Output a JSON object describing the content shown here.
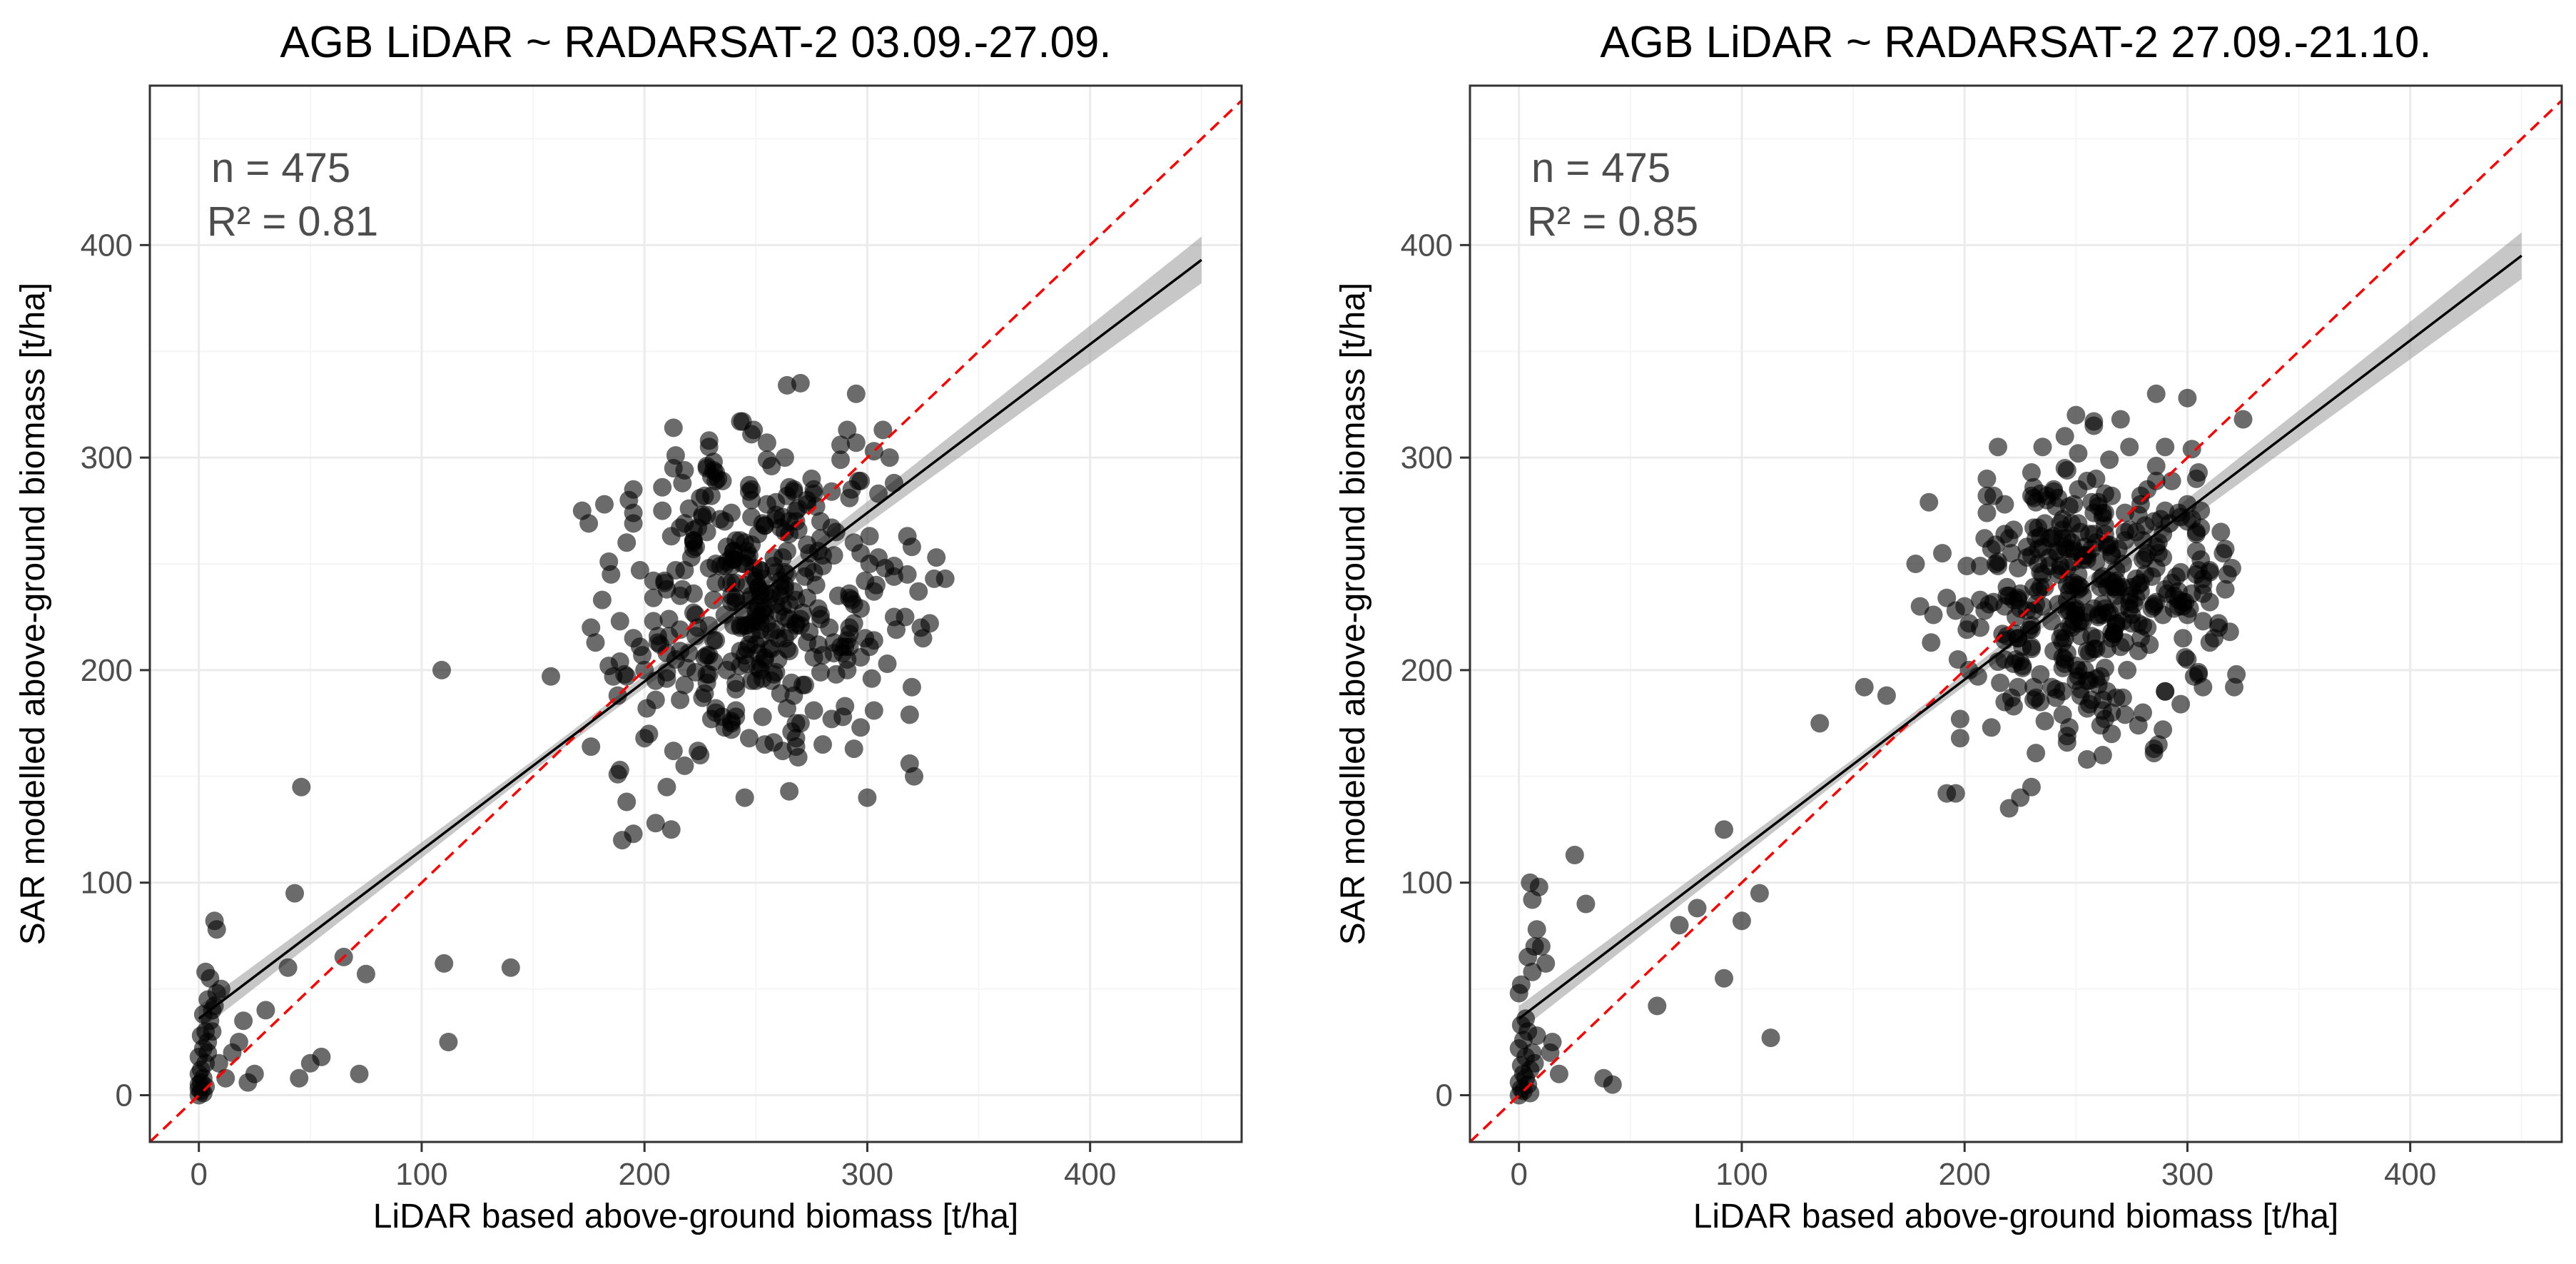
{
  "colors": {
    "point": "#000000",
    "fit_line": "#000000",
    "confidence_band": "#999999",
    "identity_line": "#ff0000"
  },
  "chart_data": [
    {
      "type": "scatter",
      "title": "AGB LiDAR ~ RADARSAT-2 03.09.-27.09.",
      "xlabel": "LiDAR based above-ground biomass [t/ha]",
      "ylabel": "SAR modelled above-ground biomass [t/ha]",
      "xlim": [
        -22,
        468
      ],
      "ylim": [
        -22,
        475
      ],
      "xticks": [
        0,
        100,
        200,
        300,
        400
      ],
      "yticks": [
        0,
        100,
        200,
        300,
        400
      ],
      "xtick_labels": [
        "0",
        "100",
        "200",
        "300",
        "400"
      ],
      "ytick_labels": [
        "0",
        "100",
        "200",
        "300",
        "400"
      ],
      "annotation_n": "n = 475",
      "annotation_r2": "R² = 0.81",
      "grid": true,
      "regression": {
        "x0": 0,
        "y0": 36,
        "x1": 450,
        "y1": 393,
        "band_halfwidth_at_x0": 6,
        "band_halfwidth_at_center": 2.5,
        "band_halfwidth_at_x1": 11
      },
      "identity_line": true,
      "points": [
        [
          0,
          0
        ],
        [
          1,
          2
        ],
        [
          0,
          5
        ],
        [
          2,
          8
        ],
        [
          1,
          12
        ],
        [
          3,
          15
        ],
        [
          0,
          18
        ],
        [
          2,
          22
        ],
        [
          4,
          25
        ],
        [
          1,
          28
        ],
        [
          3,
          30
        ],
        [
          5,
          35
        ],
        [
          2,
          38
        ],
        [
          6,
          40
        ],
        [
          4,
          45
        ],
        [
          8,
          48
        ],
        [
          5,
          55
        ],
        [
          3,
          58
        ],
        [
          7,
          42
        ],
        [
          10,
          50
        ],
        [
          0,
          3
        ],
        [
          1,
          6
        ],
        [
          2,
          1
        ],
        [
          0,
          10
        ],
        [
          3,
          4
        ],
        [
          4,
          20
        ],
        [
          6,
          30
        ],
        [
          9,
          15
        ],
        [
          12,
          8
        ],
        [
          15,
          20
        ],
        [
          18,
          25
        ],
        [
          20,
          35
        ],
        [
          25,
          10
        ],
        [
          8,
          78
        ],
        [
          7,
          82
        ],
        [
          43,
          95
        ],
        [
          45,
          8
        ],
        [
          50,
          15
        ],
        [
          55,
          18
        ],
        [
          72,
          10
        ],
        [
          65,
          65
        ],
        [
          75,
          57
        ],
        [
          46,
          145
        ],
        [
          109,
          200
        ],
        [
          110,
          62
        ],
        [
          112,
          25
        ],
        [
          140,
          60
        ],
        [
          40,
          60
        ],
        [
          30,
          40
        ],
        [
          22,
          6
        ],
        [
          158,
          197
        ],
        [
          172,
          275
        ],
        [
          182,
          278
        ],
        [
          185,
          245
        ],
        [
          188,
          188
        ],
        [
          190,
          120
        ],
        [
          192,
          138
        ],
        [
          195,
          123
        ],
        [
          200,
          168
        ],
        [
          205,
          128
        ],
        [
          210,
          145
        ],
        [
          212,
          125
        ],
        [
          218,
          155
        ],
        [
          245,
          140
        ],
        [
          265,
          143
        ],
        [
          300,
          140
        ],
        [
          320,
          258
        ],
        [
          325,
          215
        ],
        [
          330,
          243
        ],
        [
          335,
          243
        ],
        [
          305,
          283
        ],
        [
          295,
          330
        ],
        [
          310,
          300
        ],
        [
          270,
          335
        ],
        [
          264,
          334
        ],
        [
          270,
          175
        ],
        [
          280,
          165
        ],
        [
          312,
          288
        ],
        [
          318,
          263
        ],
        [
          324,
          220
        ]
      ],
      "cloud": {
        "seed": 17,
        "count": 395,
        "cx": 250,
        "cy": 233,
        "sx": 33,
        "sy": 42,
        "xmin": 175,
        "xmax": 335,
        "ymin": 150,
        "ymax": 330
      }
    },
    {
      "type": "scatter",
      "title": "AGB LiDAR ~ RADARSAT-2 27.09.-21.10.",
      "xlabel": "LiDAR based above-ground biomass [t/ha]",
      "ylabel": "SAR modelled above-ground biomass [t/ha]",
      "xlim": [
        -22,
        468
      ],
      "ylim": [
        -22,
        475
      ],
      "xticks": [
        0,
        100,
        200,
        300,
        400
      ],
      "yticks": [
        0,
        100,
        200,
        300,
        400
      ],
      "xtick_labels": [
        "0",
        "100",
        "200",
        "300",
        "400"
      ],
      "ytick_labels": [
        "0",
        "100",
        "200",
        "300",
        "400"
      ],
      "annotation_n": "n = 475",
      "annotation_r2": "R² = 0.85",
      "grid": true,
      "regression": {
        "x0": 0,
        "y0": 36,
        "x1": 450,
        "y1": 395,
        "band_halfwidth_at_x0": 6,
        "band_halfwidth_at_center": 2.5,
        "band_halfwidth_at_x1": 11
      },
      "identity_line": true,
      "points": [
        [
          0,
          0
        ],
        [
          1,
          3
        ],
        [
          0,
          6
        ],
        [
          2,
          10
        ],
        [
          1,
          14
        ],
        [
          3,
          18
        ],
        [
          0,
          22
        ],
        [
          2,
          26
        ],
        [
          4,
          30
        ],
        [
          1,
          33
        ],
        [
          3,
          8
        ],
        [
          5,
          12
        ],
        [
          2,
          2
        ],
        [
          6,
          20
        ],
        [
          4,
          5
        ],
        [
          8,
          28
        ],
        [
          5,
          1
        ],
        [
          3,
          36
        ],
        [
          7,
          15
        ],
        [
          0,
          48
        ],
        [
          1,
          52
        ],
        [
          6,
          58
        ],
        [
          4,
          65
        ],
        [
          7,
          70
        ],
        [
          8,
          78
        ],
        [
          6,
          92
        ],
        [
          9,
          98
        ],
        [
          5,
          100
        ],
        [
          10,
          70
        ],
        [
          12,
          62
        ],
        [
          14,
          20
        ],
        [
          15,
          25
        ],
        [
          18,
          10
        ],
        [
          25,
          113
        ],
        [
          30,
          90
        ],
        [
          38,
          8
        ],
        [
          42,
          5
        ],
        [
          62,
          42
        ],
        [
          72,
          80
        ],
        [
          80,
          88
        ],
        [
          92,
          125
        ],
        [
          92,
          55
        ],
        [
          100,
          82
        ],
        [
          108,
          95
        ],
        [
          113,
          27
        ],
        [
          135,
          175
        ],
        [
          155,
          192
        ],
        [
          165,
          188
        ],
        [
          178,
          250
        ],
        [
          180,
          230
        ],
        [
          190,
          255
        ],
        [
          192,
          142
        ],
        [
          196,
          142
        ],
        [
          198,
          168
        ],
        [
          220,
          135
        ],
        [
          225,
          140
        ],
        [
          230,
          145
        ],
        [
          255,
          158
        ],
        [
          262,
          160
        ],
        [
          250,
          320
        ],
        [
          258,
          315
        ],
        [
          270,
          318
        ],
        [
          286,
          330
        ],
        [
          300,
          328
        ],
        [
          325,
          318
        ],
        [
          320,
          248
        ],
        [
          312,
          215
        ],
        [
          305,
          198
        ],
        [
          300,
          205
        ],
        [
          290,
          190
        ],
        [
          280,
          180
        ],
        [
          210,
          290
        ],
        [
          215,
          305
        ],
        [
          235,
          305
        ],
        [
          245,
          310
        ],
        [
          282,
          285
        ],
        [
          318,
          245
        ],
        [
          314,
          222
        ],
        [
          300,
          270
        ],
        [
          310,
          232
        ]
      ],
      "cloud": {
        "seed": 29,
        "count": 395,
        "cx": 254,
        "cy": 235,
        "sx": 30,
        "sy": 33,
        "xmin": 182,
        "xmax": 325,
        "ymin": 155,
        "ymax": 320
      }
    }
  ]
}
